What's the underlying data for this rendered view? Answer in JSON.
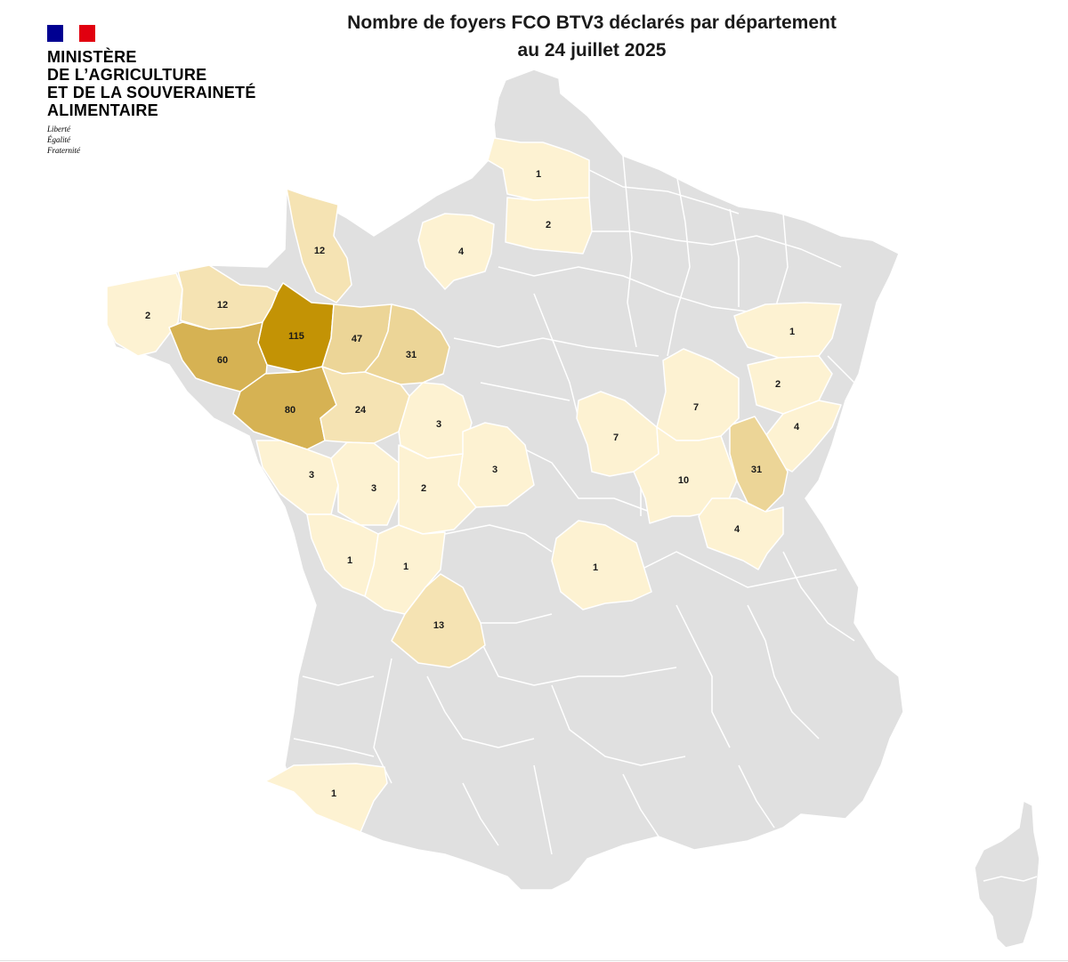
{
  "header": {
    "title_line1": "Nombre de foyers FCO BTV3 déclarés par département",
    "title_line2": "au 24 juillet 2025"
  },
  "logo": {
    "flag_colors": [
      "#000091",
      "#ffffff",
      "#e1000f"
    ],
    "name_lines": [
      "MINISTÈRE",
      "DE L’AGRICULTURE",
      "ET DE LA SOUVERAINETÉ",
      "ALIMENTAIRE"
    ],
    "motto_lines": [
      "Liberté",
      "Égalité",
      "Fraternité"
    ]
  },
  "map": {
    "base_color": "#e0e0e0",
    "border_color": "#ffffff",
    "color_scale": {
      "very_low": "#fdf2d2",
      "low": "#f5e3b3",
      "mid": "#ecd597",
      "high": "#d6b253",
      "top": "#c39305"
    },
    "departments": [
      {
        "id": "pas-de-calais-somme",
        "value": "1",
        "level": "very_low"
      },
      {
        "id": "oise-aisne",
        "value": "2",
        "level": "very_low"
      },
      {
        "id": "eure",
        "value": "4",
        "level": "very_low"
      },
      {
        "id": "manche",
        "value": "12",
        "level": "low"
      },
      {
        "id": "finistere",
        "value": "2",
        "level": "very_low"
      },
      {
        "id": "cotes-d-armor",
        "value": "12",
        "level": "low"
      },
      {
        "id": "mayenne",
        "value": "115",
        "level": "top"
      },
      {
        "id": "sarthe",
        "value": "47",
        "level": "mid"
      },
      {
        "id": "eure-et-loir",
        "value": "31",
        "level": "mid"
      },
      {
        "id": "morbihan",
        "value": "60",
        "level": "high"
      },
      {
        "id": "maine-et-loire",
        "value": "80",
        "level": "high"
      },
      {
        "id": "indre-et-loire",
        "value": "24",
        "level": "low"
      },
      {
        "id": "loir-et-cher",
        "value": "3",
        "level": "very_low"
      },
      {
        "id": "cher",
        "value": "3",
        "level": "very_low"
      },
      {
        "id": "vendee",
        "value": "3",
        "level": "very_low"
      },
      {
        "id": "deux-sevres",
        "value": "3",
        "level": "very_low"
      },
      {
        "id": "vienne",
        "value": "2",
        "level": "very_low"
      },
      {
        "id": "charente-maritime",
        "value": "1",
        "level": "very_low"
      },
      {
        "id": "charente",
        "value": "1",
        "level": "very_low"
      },
      {
        "id": "dordogne",
        "value": "13",
        "level": "low"
      },
      {
        "id": "puy-de-dome",
        "value": "1",
        "level": "very_low"
      },
      {
        "id": "pyrenees-atlantiques",
        "value": "1",
        "level": "very_low"
      },
      {
        "id": "vosges",
        "value": "1",
        "level": "very_low"
      },
      {
        "id": "haute-saone",
        "value": "2",
        "level": "very_low"
      },
      {
        "id": "doubs",
        "value": "4",
        "level": "very_low"
      },
      {
        "id": "jura",
        "value": "31",
        "level": "mid"
      },
      {
        "id": "cote-d-or",
        "value": "7",
        "level": "very_low"
      },
      {
        "id": "nievre",
        "value": "7",
        "level": "very_low"
      },
      {
        "id": "saone-et-loire",
        "value": "10",
        "level": "very_low"
      },
      {
        "id": "ain",
        "value": "4",
        "level": "very_low"
      }
    ]
  }
}
